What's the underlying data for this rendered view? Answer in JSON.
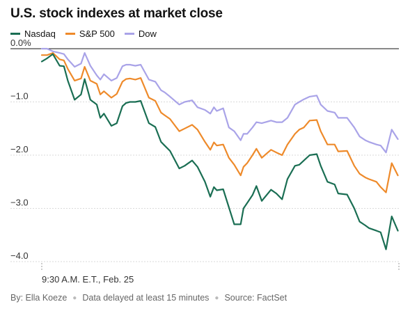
{
  "chart_data": {
    "type": "line",
    "title": "U.S. stock indexes at market close",
    "x_label_start": "9:30 A.M. E.T., Feb. 25",
    "ylim": [
      -4.0,
      0.0
    ],
    "yticks": [
      0.0,
      -1.0,
      -2.0,
      -3.0,
      -4.0
    ],
    "ytick_labels": [
      "0.0%",
      "−1.0",
      "−2.0",
      "−3.0",
      "−4.0"
    ],
    "x_range": [
      0,
      1
    ],
    "series": [
      {
        "name": "Nasdaq",
        "color": "#1a6e53",
        "x": [
          0.0,
          0.015,
          0.031,
          0.05,
          0.062,
          0.073,
          0.092,
          0.11,
          0.12,
          0.136,
          0.154,
          0.164,
          0.174,
          0.195,
          0.21,
          0.226,
          0.236,
          0.247,
          0.262,
          0.277,
          0.3,
          0.318,
          0.334,
          0.344,
          0.359,
          0.385,
          0.4,
          0.421,
          0.436,
          0.457,
          0.472,
          0.482,
          0.49,
          0.508,
          0.524,
          0.539,
          0.557,
          0.565,
          0.575,
          0.59,
          0.601,
          0.616,
          0.642,
          0.657,
          0.673,
          0.688,
          0.709,
          0.721,
          0.734,
          0.75,
          0.77,
          0.781,
          0.8,
          0.82,
          0.83,
          0.855,
          0.875,
          0.89,
          0.906,
          0.916,
          0.937,
          0.949,
          0.964,
          0.98,
          0.997
        ],
        "y": [
          -0.24,
          -0.18,
          -0.1,
          -0.32,
          -0.33,
          -0.6,
          -0.96,
          -0.86,
          -0.57,
          -0.96,
          -1.05,
          -1.3,
          -1.22,
          -1.45,
          -1.4,
          -1.08,
          -1.02,
          -1.0,
          -1.0,
          -0.98,
          -1.4,
          -1.47,
          -1.75,
          -1.82,
          -1.92,
          -2.25,
          -2.2,
          -2.1,
          -2.22,
          -2.5,
          -2.78,
          -2.6,
          -2.66,
          -2.64,
          -2.98,
          -3.3,
          -3.3,
          -3.0,
          -2.9,
          -2.75,
          -2.58,
          -2.86,
          -2.65,
          -2.72,
          -2.83,
          -2.45,
          -2.2,
          -2.18,
          -2.1,
          -2.0,
          -1.98,
          -2.2,
          -2.5,
          -2.55,
          -2.72,
          -2.74,
          -3.0,
          -3.25,
          -3.32,
          -3.37,
          -3.42,
          -3.45,
          -3.77,
          -3.15,
          -3.42
        ]
      },
      {
        "name": "S&P 500",
        "color": "#ee8a2a",
        "x": [
          0.0,
          0.015,
          0.031,
          0.05,
          0.062,
          0.073,
          0.092,
          0.11,
          0.12,
          0.136,
          0.154,
          0.164,
          0.174,
          0.195,
          0.21,
          0.226,
          0.236,
          0.247,
          0.262,
          0.277,
          0.3,
          0.318,
          0.334,
          0.344,
          0.359,
          0.385,
          0.4,
          0.421,
          0.436,
          0.457,
          0.472,
          0.482,
          0.49,
          0.508,
          0.524,
          0.539,
          0.557,
          0.565,
          0.575,
          0.59,
          0.601,
          0.616,
          0.642,
          0.657,
          0.673,
          0.688,
          0.709,
          0.721,
          0.734,
          0.75,
          0.77,
          0.781,
          0.8,
          0.82,
          0.83,
          0.855,
          0.875,
          0.89,
          0.906,
          0.916,
          0.937,
          0.949,
          0.964,
          0.98,
          0.997
        ],
        "y": [
          -0.12,
          -0.12,
          -0.08,
          -0.2,
          -0.22,
          -0.38,
          -0.6,
          -0.56,
          -0.34,
          -0.6,
          -0.66,
          -0.86,
          -0.8,
          -0.92,
          -0.85,
          -0.62,
          -0.57,
          -0.56,
          -0.58,
          -0.55,
          -0.92,
          -0.98,
          -1.2,
          -1.25,
          -1.32,
          -1.55,
          -1.5,
          -1.43,
          -1.52,
          -1.75,
          -1.9,
          -1.76,
          -1.82,
          -1.8,
          -2.05,
          -2.18,
          -2.38,
          -2.22,
          -2.15,
          -2.0,
          -1.88,
          -2.05,
          -1.9,
          -1.95,
          -2.0,
          -1.8,
          -1.6,
          -1.52,
          -1.48,
          -1.35,
          -1.34,
          -1.55,
          -1.8,
          -1.8,
          -1.93,
          -1.92,
          -2.2,
          -2.35,
          -2.42,
          -2.45,
          -2.5,
          -2.6,
          -2.7,
          -2.15,
          -2.38
        ]
      },
      {
        "name": "Dow",
        "color": "#a9a3e8",
        "x": [
          0.0,
          0.015,
          0.031,
          0.05,
          0.062,
          0.073,
          0.092,
          0.11,
          0.12,
          0.136,
          0.154,
          0.164,
          0.174,
          0.195,
          0.21,
          0.226,
          0.236,
          0.247,
          0.262,
          0.277,
          0.3,
          0.318,
          0.334,
          0.344,
          0.359,
          0.385,
          0.4,
          0.421,
          0.436,
          0.457,
          0.472,
          0.482,
          0.49,
          0.508,
          0.524,
          0.539,
          0.557,
          0.565,
          0.575,
          0.59,
          0.601,
          0.616,
          0.642,
          0.657,
          0.673,
          0.688,
          0.709,
          0.721,
          0.734,
          0.75,
          0.77,
          0.781,
          0.8,
          0.82,
          0.83,
          0.855,
          0.875,
          0.89,
          0.906,
          0.916,
          0.937,
          0.949,
          0.964,
          0.98,
          0.997
        ],
        "y": [
          0.0,
          0.0,
          -0.05,
          -0.08,
          -0.1,
          -0.2,
          -0.34,
          -0.28,
          -0.08,
          -0.32,
          -0.5,
          -0.58,
          -0.48,
          -0.6,
          -0.55,
          -0.33,
          -0.3,
          -0.3,
          -0.32,
          -0.3,
          -0.58,
          -0.62,
          -0.78,
          -0.82,
          -0.9,
          -1.05,
          -1.0,
          -0.97,
          -1.1,
          -1.15,
          -1.22,
          -1.1,
          -1.17,
          -1.12,
          -1.48,
          -1.55,
          -1.72,
          -1.6,
          -1.6,
          -1.48,
          -1.38,
          -1.4,
          -1.35,
          -1.38,
          -1.38,
          -1.3,
          -1.05,
          -1.0,
          -0.95,
          -0.9,
          -0.88,
          -1.05,
          -1.17,
          -1.2,
          -1.3,
          -1.3,
          -1.48,
          -1.65,
          -1.72,
          -1.75,
          -1.8,
          -1.82,
          -1.95,
          -1.52,
          -1.7
        ]
      }
    ]
  },
  "footer": {
    "byline": "By: Ella Koeze",
    "delay_note": "Data delayed at least 15 minutes",
    "source": "Source: FactSet",
    "separator": "●"
  }
}
